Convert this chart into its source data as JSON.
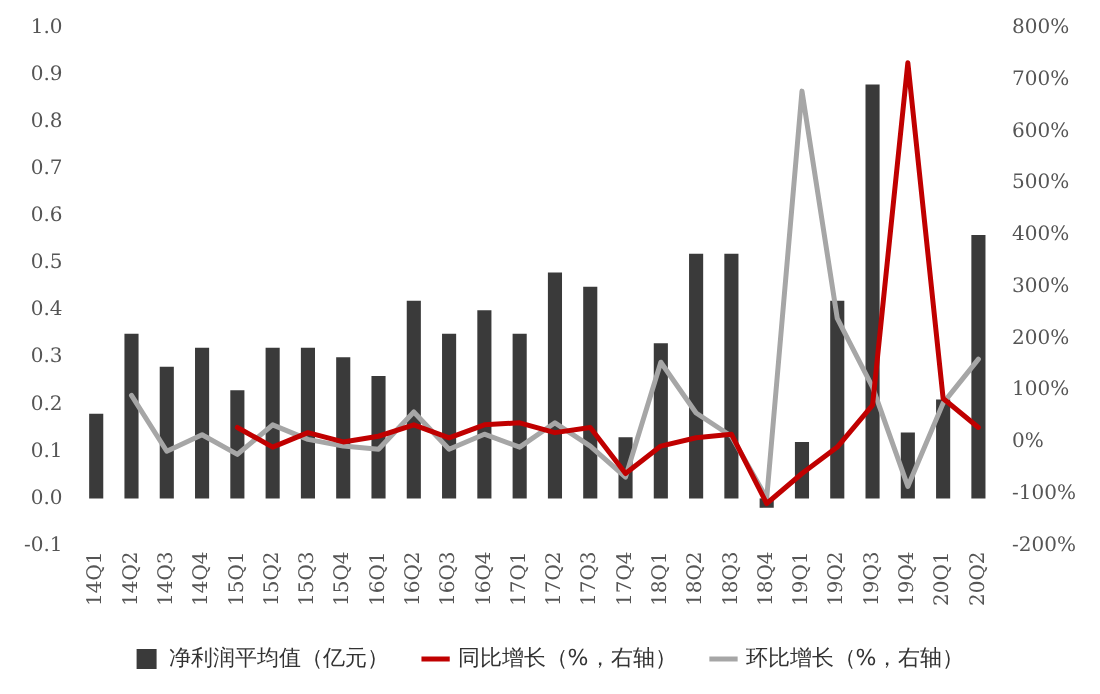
{
  "chart_data": {
    "type": "bar",
    "categories": [
      "14Q1",
      "14Q2",
      "14Q3",
      "14Q4",
      "15Q1",
      "15Q2",
      "15Q3",
      "15Q4",
      "16Q1",
      "16Q2",
      "16Q3",
      "16Q4",
      "17Q1",
      "17Q2",
      "17Q3",
      "17Q4",
      "18Q1",
      "18Q2",
      "18Q3",
      "18Q4",
      "19Q1",
      "19Q2",
      "19Q3",
      "19Q4",
      "20Q1",
      "20Q2"
    ],
    "series": [
      {
        "name": "净利润平均值（亿元）",
        "color": "#3a3a3a",
        "values": [
          0.18,
          0.35,
          0.28,
          0.32,
          0.23,
          0.32,
          0.32,
          0.3,
          0.26,
          0.42,
          0.35,
          0.4,
          0.35,
          0.48,
          0.45,
          0.13,
          0.33,
          0.52,
          0.52,
          -0.02,
          0.12,
          0.42,
          0.88,
          0.14,
          0.21,
          0.56
        ]
      },
      {
        "name": "同比增长（%，右轴）",
        "type": "line",
        "axis": "y2",
        "color": "#c00000",
        "values": [
          null,
          null,
          null,
          null,
          28,
          -10,
          18,
          0,
          11,
          33,
          8,
          33,
          37,
          18,
          28,
          -61,
          -8,
          8,
          15,
          -119,
          -61,
          -10,
          71,
          733,
          84,
          28
        ]
      },
      {
        "name": "环比增长（%，右轴）",
        "type": "line",
        "axis": "y2",
        "color": "#a6a6a6",
        "values": [
          null,
          90,
          -18,
          14,
          -24,
          33,
          5,
          -8,
          -14,
          58,
          -14,
          15,
          -10,
          37,
          -8,
          -68,
          154,
          56,
          11,
          -109,
          678,
          239,
          106,
          -86,
          75,
          160
        ]
      }
    ],
    "ylim": [
      -0.1,
      1.0
    ],
    "yticks": [
      {
        "value": -0.1,
        "label": "-0.1"
      },
      {
        "value": 0,
        "label": "0.0"
      },
      {
        "value": 0.1,
        "label": "0.1"
      },
      {
        "value": 0.2,
        "label": "0.2"
      },
      {
        "value": 0.3,
        "label": "0.3"
      },
      {
        "value": 0.4,
        "label": "0.4"
      },
      {
        "value": 0.5,
        "label": "0.5"
      },
      {
        "value": 0.6,
        "label": "0.6"
      },
      {
        "value": 0.7,
        "label": "0.7"
      },
      {
        "value": 0.8,
        "label": "0.8"
      },
      {
        "value": 0.9,
        "label": "0.9"
      },
      {
        "value": 1.0,
        "label": "1.0"
      }
    ],
    "y2lim": [
      -200,
      800
    ],
    "y2ticks": [
      {
        "value": -200,
        "label": "-200%"
      },
      {
        "value": -100,
        "label": "-100%"
      },
      {
        "value": 0,
        "label": "0%"
      },
      {
        "value": 100,
        "label": "100%"
      },
      {
        "value": 200,
        "label": "200%"
      },
      {
        "value": 300,
        "label": "300%"
      },
      {
        "value": 400,
        "label": "400%"
      },
      {
        "value": 500,
        "label": "500%"
      },
      {
        "value": 600,
        "label": "600%"
      },
      {
        "value": 700,
        "label": "700%"
      },
      {
        "value": 800,
        "label": "800%"
      }
    ],
    "grid": false,
    "legend": "bottom",
    "marker": "none"
  }
}
